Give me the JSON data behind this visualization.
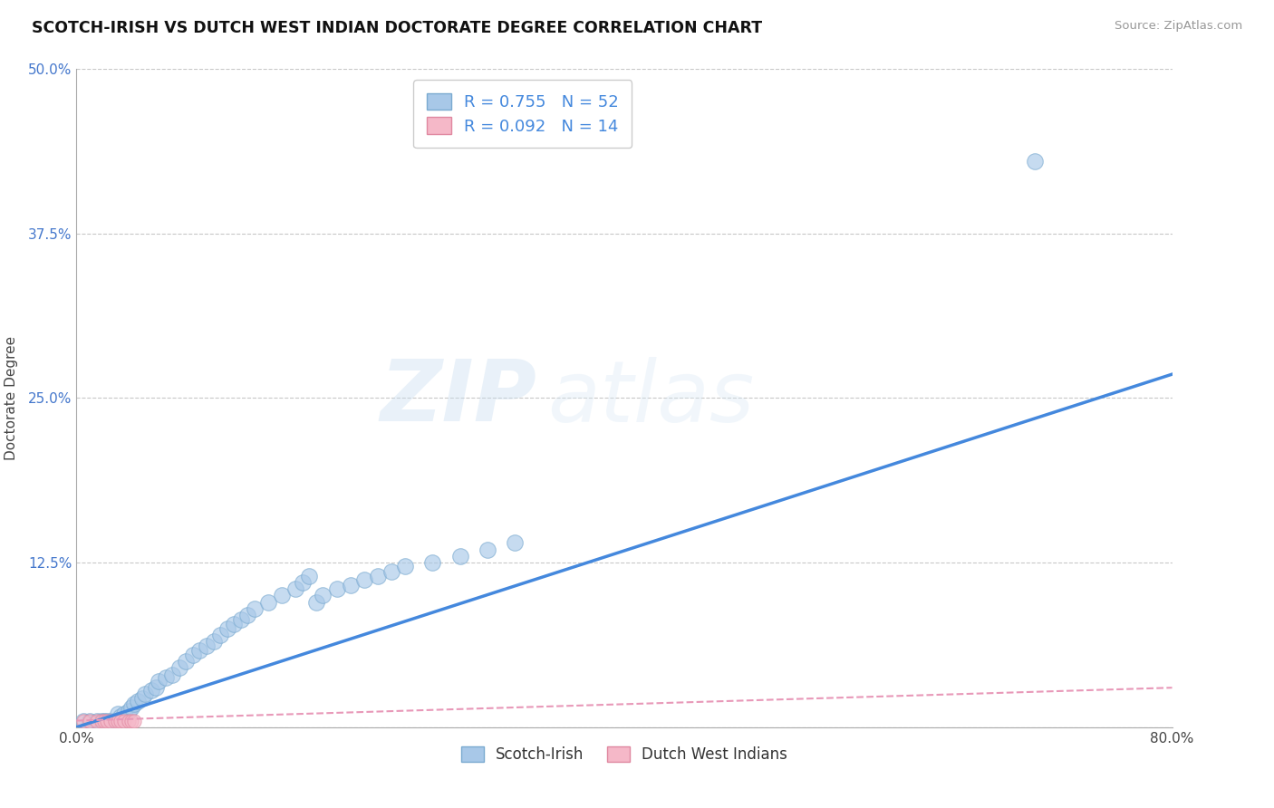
{
  "title": "SCOTCH-IRISH VS DUTCH WEST INDIAN DOCTORATE DEGREE CORRELATION CHART",
  "source": "Source: ZipAtlas.com",
  "ylabel": "Doctorate Degree",
  "xlim": [
    0.0,
    0.8
  ],
  "ylim": [
    0.0,
    0.5
  ],
  "xticks": [
    0.0,
    0.1,
    0.2,
    0.3,
    0.4,
    0.5,
    0.6,
    0.7,
    0.8
  ],
  "yticks": [
    0.0,
    0.125,
    0.25,
    0.375,
    0.5
  ],
  "xticklabels": [
    "0.0%",
    "",
    "",
    "",
    "",
    "",
    "",
    "",
    "80.0%"
  ],
  "yticklabels": [
    "",
    "12.5%",
    "25.0%",
    "37.5%",
    "50.0%"
  ],
  "background_color": "#ffffff",
  "grid_color": "#c8c8c8",
  "watermark_zip": "ZIP",
  "watermark_atlas": "atlas",
  "scotch_irish_color": "#a8c8e8",
  "scotch_irish_edge_color": "#7aaad0",
  "dutch_wi_color": "#f5b8c8",
  "dutch_wi_edge_color": "#e088a0",
  "blue_line_color": "#4488dd",
  "pink_line_color": "#e898b8",
  "R_scotch": 0.755,
  "N_scotch": 52,
  "R_dutch": 0.092,
  "N_dutch": 14,
  "scotch_irish_x": [
    0.005,
    0.01,
    0.015,
    0.018,
    0.02,
    0.022,
    0.025,
    0.028,
    0.03,
    0.032,
    0.035,
    0.038,
    0.04,
    0.042,
    0.045,
    0.048,
    0.05,
    0.055,
    0.058,
    0.06,
    0.065,
    0.07,
    0.075,
    0.08,
    0.085,
    0.09,
    0.095,
    0.1,
    0.105,
    0.11,
    0.115,
    0.12,
    0.125,
    0.13,
    0.14,
    0.15,
    0.16,
    0.165,
    0.17,
    0.175,
    0.18,
    0.19,
    0.2,
    0.21,
    0.22,
    0.23,
    0.24,
    0.26,
    0.28,
    0.3,
    0.32,
    0.7
  ],
  "scotch_irish_y": [
    0.005,
    0.005,
    0.005,
    0.005,
    0.005,
    0.005,
    0.005,
    0.005,
    0.01,
    0.008,
    0.01,
    0.012,
    0.015,
    0.018,
    0.02,
    0.022,
    0.025,
    0.028,
    0.03,
    0.035,
    0.038,
    0.04,
    0.045,
    0.05,
    0.055,
    0.058,
    0.062,
    0.065,
    0.07,
    0.075,
    0.078,
    0.082,
    0.085,
    0.09,
    0.095,
    0.1,
    0.105,
    0.11,
    0.115,
    0.095,
    0.1,
    0.105,
    0.108,
    0.112,
    0.115,
    0.118,
    0.122,
    0.125,
    0.13,
    0.135,
    0.14,
    0.43
  ],
  "dutch_wi_x": [
    0.005,
    0.01,
    0.015,
    0.018,
    0.02,
    0.022,
    0.025,
    0.028,
    0.03,
    0.032,
    0.035,
    0.038,
    0.04,
    0.042
  ],
  "dutch_wi_y": [
    0.005,
    0.005,
    0.005,
    0.005,
    0.005,
    0.005,
    0.005,
    0.005,
    0.005,
    0.005,
    0.005,
    0.005,
    0.005,
    0.005
  ],
  "scotch_trendline_x": [
    0.0,
    0.8
  ],
  "scotch_trendline_y": [
    0.0,
    0.268
  ],
  "dutch_trendline_x": [
    0.0,
    0.8
  ],
  "dutch_trendline_y": [
    0.005,
    0.03
  ]
}
